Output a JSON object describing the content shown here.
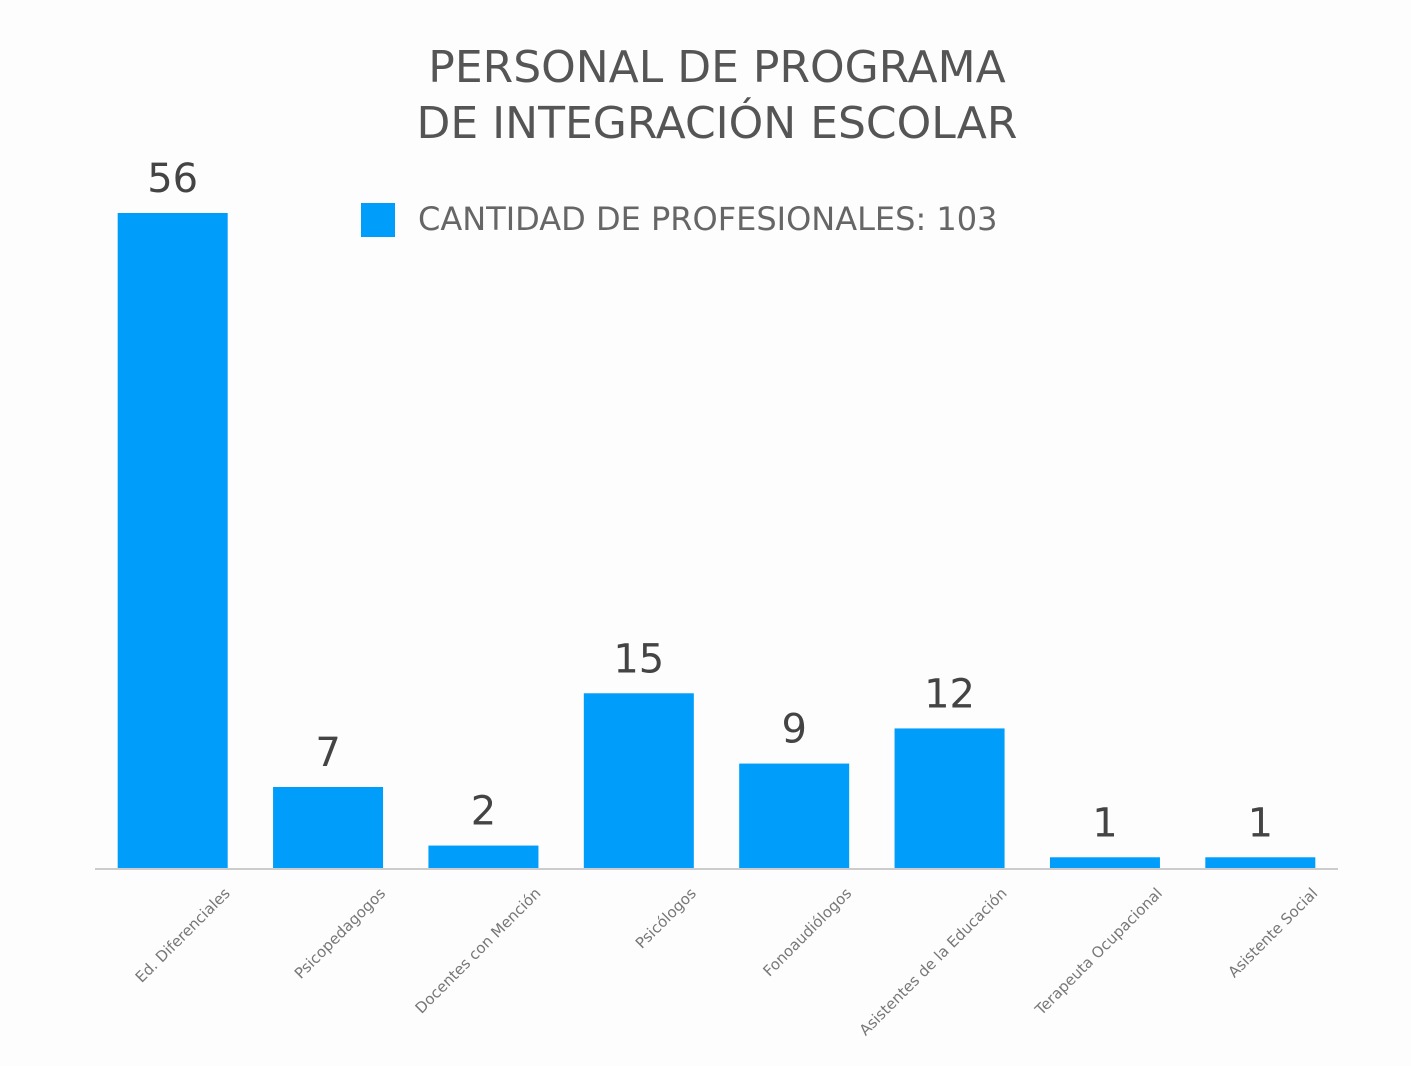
{
  "chart_data": {
    "type": "bar",
    "title": [
      "PERSONAL DE PROGRAMA",
      "DE INTEGRACIÓN ESCOLAR"
    ],
    "categories": [
      "Ed. Diferenciales",
      "Psicopedagogos",
      "Docentes con Mención",
      "Psicólogos",
      "Fonoaudiólogos",
      "Asistentes de la Educación",
      "Terapeuta Ocupacional",
      "Asistente Social"
    ],
    "series": [
      {
        "name": "CANTIDAD DE PROFESIONALES: 103",
        "color": "#009dfa",
        "values": [
          56,
          7,
          2,
          15,
          9,
          12,
          1,
          1
        ]
      }
    ],
    "ylim": [
      0,
      56
    ],
    "legend": "top"
  }
}
